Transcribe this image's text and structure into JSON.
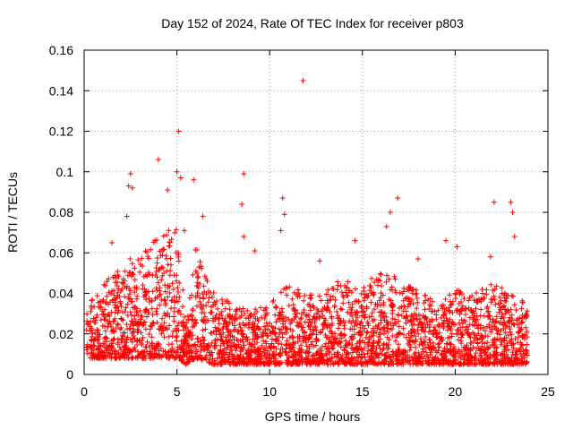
{
  "chart_data": {
    "type": "scatter",
    "title": "Day 152 of 2024, Rate Of TEC Index for receiver p803",
    "xlabel": "GPS time / hours",
    "ylabel": "ROTI / TECUs",
    "xlim": [
      0,
      25
    ],
    "ylim": [
      0,
      0.16
    ],
    "xticks": [
      "0",
      "5",
      "10",
      "15",
      "20",
      "25"
    ],
    "yticks": [
      "0",
      "0.02",
      "0.04",
      "0.06",
      "0.08",
      "0.1",
      "0.12",
      "0.14",
      "0.16"
    ],
    "grid": true,
    "marker": "+",
    "series_color": "#ff0000",
    "notable_points": [
      {
        "x": 11.8,
        "y": 0.145
      },
      {
        "x": 5.1,
        "y": 0.12
      },
      {
        "x": 4.0,
        "y": 0.106
      },
      {
        "x": 5.0,
        "y": 0.1
      },
      {
        "x": 8.6,
        "y": 0.099
      },
      {
        "x": 2.5,
        "y": 0.099
      },
      {
        "x": 5.2,
        "y": 0.097
      },
      {
        "x": 5.9,
        "y": 0.096
      },
      {
        "x": 2.4,
        "y": 0.093
      },
      {
        "x": 2.6,
        "y": 0.092
      },
      {
        "x": 4.5,
        "y": 0.091
      },
      {
        "x": 16.9,
        "y": 0.087
      },
      {
        "x": 10.7,
        "y": 0.087
      },
      {
        "x": 22.1,
        "y": 0.085
      },
      {
        "x": 23.0,
        "y": 0.085
      },
      {
        "x": 8.5,
        "y": 0.084
      },
      {
        "x": 16.5,
        "y": 0.08
      },
      {
        "x": 23.1,
        "y": 0.08
      },
      {
        "x": 10.8,
        "y": 0.079
      },
      {
        "x": 2.3,
        "y": 0.078
      },
      {
        "x": 6.4,
        "y": 0.078
      },
      {
        "x": 16.3,
        "y": 0.073
      },
      {
        "x": 10.6,
        "y": 0.071
      },
      {
        "x": 5.4,
        "y": 0.071
      },
      {
        "x": 8.6,
        "y": 0.068
      },
      {
        "x": 23.2,
        "y": 0.068
      },
      {
        "x": 14.6,
        "y": 0.066
      },
      {
        "x": 19.5,
        "y": 0.066
      },
      {
        "x": 20.1,
        "y": 0.063
      },
      {
        "x": 1.5,
        "y": 0.065
      },
      {
        "x": 9.2,
        "y": 0.061
      },
      {
        "x": 12.7,
        "y": 0.056
      },
      {
        "x": 18.0,
        "y": 0.057
      },
      {
        "x": 21.9,
        "y": 0.058
      }
    ],
    "activity_profile": [
      {
        "x": 0.0,
        "low": 0.008,
        "high": 0.032
      },
      {
        "x": 1.0,
        "low": 0.008,
        "high": 0.045
      },
      {
        "x": 2.0,
        "low": 0.008,
        "high": 0.055
      },
      {
        "x": 3.0,
        "low": 0.008,
        "high": 0.06
      },
      {
        "x": 4.0,
        "low": 0.008,
        "high": 0.07
      },
      {
        "x": 5.0,
        "low": 0.008,
        "high": 0.072
      },
      {
        "x": 5.5,
        "low": 0.005,
        "high": 0.025
      },
      {
        "x": 6.0,
        "low": 0.008,
        "high": 0.065
      },
      {
        "x": 7.0,
        "low": 0.005,
        "high": 0.04
      },
      {
        "x": 8.0,
        "low": 0.005,
        "high": 0.035
      },
      {
        "x": 9.0,
        "low": 0.005,
        "high": 0.032
      },
      {
        "x": 10.0,
        "low": 0.005,
        "high": 0.035
      },
      {
        "x": 11.0,
        "low": 0.005,
        "high": 0.045
      },
      {
        "x": 12.0,
        "low": 0.005,
        "high": 0.04
      },
      {
        "x": 13.0,
        "low": 0.005,
        "high": 0.042
      },
      {
        "x": 14.0,
        "low": 0.005,
        "high": 0.048
      },
      {
        "x": 15.0,
        "low": 0.005,
        "high": 0.045
      },
      {
        "x": 16.0,
        "low": 0.005,
        "high": 0.05
      },
      {
        "x": 17.0,
        "low": 0.005,
        "high": 0.048
      },
      {
        "x": 18.0,
        "low": 0.005,
        "high": 0.042
      },
      {
        "x": 19.0,
        "low": 0.005,
        "high": 0.035
      },
      {
        "x": 20.0,
        "low": 0.005,
        "high": 0.042
      },
      {
        "x": 21.0,
        "low": 0.005,
        "high": 0.04
      },
      {
        "x": 22.0,
        "low": 0.005,
        "high": 0.045
      },
      {
        "x": 23.0,
        "low": 0.005,
        "high": 0.042
      },
      {
        "x": 24.0,
        "low": 0.005,
        "high": 0.035
      }
    ]
  }
}
